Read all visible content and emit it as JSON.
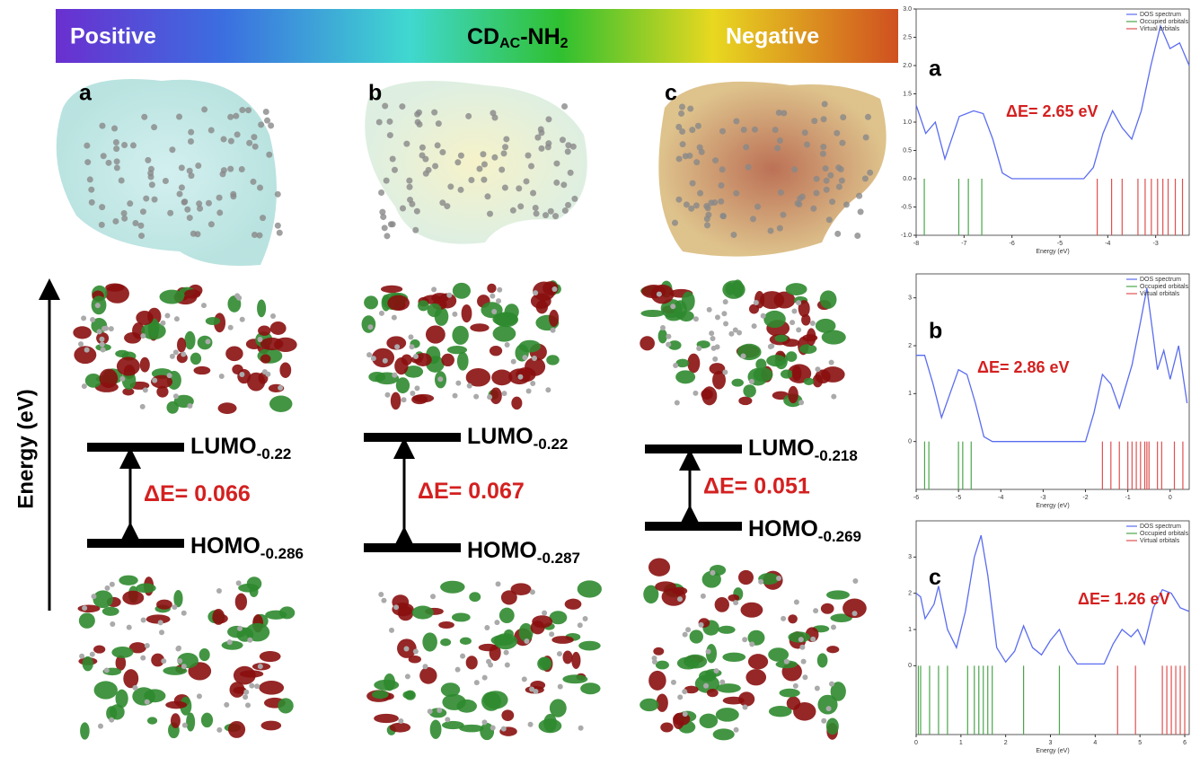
{
  "header": {
    "positive": "Positive",
    "cd": "CD",
    "cd_sub": "AC",
    "nh": "-NH",
    "nh_sub": "2",
    "negative": "Negative"
  },
  "energy_axis": "Energy (eV)",
  "panels": [
    {
      "label": "a",
      "lumo": "LUMO",
      "lumo_sub": "-0.22",
      "delta": "ΔE= 0.066",
      "homo": "HOMO",
      "homo_sub": "-0.286"
    },
    {
      "label": "b",
      "lumo": "LUMO",
      "lumo_sub": "-0.22",
      "delta": "ΔE= 0.067",
      "homo": "HOMO",
      "homo_sub": "-0.287"
    },
    {
      "label": "c",
      "lumo": "LUMO",
      "lumo_sub": "-0.218",
      "delta": "ΔE= 0.051",
      "homo": "HOMO",
      "homo_sub": "-0.269"
    }
  ],
  "chart_data": [
    {
      "type": "line",
      "panel": "a",
      "annotation": "ΔE= 2.65 eV",
      "xlabel": "Energy (eV)",
      "xlim": [
        -8,
        -2.3
      ],
      "xticks": [
        -8,
        -7,
        -6,
        -5,
        -4,
        -3
      ],
      "ylim": [
        -1,
        3
      ],
      "yticks": [
        {
          "value": -1,
          "label": "-1.0"
        },
        {
          "value": -0.5,
          "label": "-0.5"
        },
        {
          "value": 0,
          "label": "0.0"
        },
        {
          "value": 0.5,
          "label": "0.5"
        },
        {
          "value": 1,
          "label": "1.0"
        },
        {
          "value": 1.5,
          "label": "1.5"
        },
        {
          "value": 2,
          "label": "2.0"
        },
        {
          "value": 2.5,
          "label": "2.5"
        },
        {
          "value": 3,
          "label": "3.0"
        }
      ],
      "series": [
        {
          "name": "DOS spectrum",
          "color": "#5a6cf0",
          "x": [
            -8,
            -7.8,
            -7.6,
            -7.4,
            -7.1,
            -6.8,
            -6.6,
            -6.4,
            -6.2,
            -6,
            -5,
            -4.5,
            -4.3,
            -4.1,
            -3.9,
            -3.7,
            -3.5,
            -3.3,
            -3.1,
            -2.9,
            -2.7,
            -2.5,
            -2.3
          ],
          "values": [
            1.3,
            0.8,
            1,
            0.35,
            1.1,
            1.2,
            1.15,
            0.7,
            0.1,
            0,
            0,
            0,
            0.2,
            0.8,
            1.2,
            0.9,
            0.7,
            1.2,
            2,
            2.7,
            2.3,
            2.4,
            2
          ]
        }
      ],
      "orbitals": [
        {
          "name": "Occupied orbitals",
          "color": "#4aa64a",
          "x": [
            -7.83,
            -7.11,
            -6.91,
            -6.63
          ]
        },
        {
          "name": "Virtual orbitals",
          "color": "#e05050",
          "x": [
            -4.22,
            -3.92,
            -3.7,
            -3.37,
            -3.22,
            -3.09,
            -2.96,
            -2.85,
            -2.74,
            -2.59,
            -2.44
          ]
        }
      ]
    },
    {
      "type": "line",
      "panel": "b",
      "annotation": "ΔE= 2.86 eV",
      "xlabel": "Energy (eV)",
      "xlim": [
        -6,
        0.45
      ],
      "xticks": [
        -6,
        -5,
        -4,
        -3,
        -2,
        -1,
        0
      ],
      "ylim": [
        -1,
        3.5
      ],
      "yticks": [
        0,
        1,
        2,
        3
      ],
      "series": [
        {
          "name": "DOS spectrum",
          "color": "#5a6cf0",
          "x": [
            -6,
            -5.8,
            -5.6,
            -5.4,
            -5.2,
            -5,
            -4.8,
            -4.6,
            -4.4,
            -4.2,
            -2,
            -1.8,
            -1.6,
            -1.4,
            -1.2,
            -0.9,
            -0.7,
            -0.55,
            -0.4,
            -0.3,
            -0.15,
            0,
            0.2,
            0.4
          ],
          "values": [
            1.8,
            1.8,
            1.2,
            0.5,
            1,
            1.5,
            1.4,
            0.8,
            0.1,
            0,
            0,
            0.6,
            1.4,
            1.2,
            0.7,
            1.6,
            2.5,
            3.2,
            2.2,
            1.5,
            1.9,
            1.3,
            2,
            0.8
          ]
        }
      ],
      "orbitals": [
        {
          "name": "Occupied orbitals",
          "color": "#4aa64a",
          "x": [
            -5.8,
            -5.7,
            -5,
            -4.9,
            -4.7
          ]
        },
        {
          "name": "Virtual orbitals",
          "color": "#e05050",
          "x": [
            -1.6,
            -1.4,
            -1.2,
            -1,
            -0.9,
            -0.8,
            -0.7,
            -0.6,
            -0.55,
            -0.5,
            -0.3,
            -0.2,
            0.1,
            0.3
          ]
        }
      ]
    },
    {
      "type": "line",
      "panel": "c",
      "annotation": "ΔE= 1.26 eV",
      "xlabel": "Energy (eV)",
      "xlim": [
        0,
        6.1
      ],
      "xticks": [
        0,
        1,
        2,
        3,
        4,
        5,
        6
      ],
      "ylim": [
        -1.9,
        4
      ],
      "yticks": [
        0,
        1,
        2,
        3
      ],
      "series": [
        {
          "name": "DOS spectrum",
          "color": "#5a6cf0",
          "x": [
            0,
            0.1,
            0.2,
            0.4,
            0.5,
            0.7,
            0.9,
            1.1,
            1.3,
            1.45,
            1.6,
            1.8,
            2,
            2.2,
            2.4,
            2.6,
            2.8,
            3,
            3.2,
            3.4,
            3.6,
            4.2,
            4.4,
            4.6,
            4.8,
            4.95,
            5.1,
            5.3,
            5.5,
            5.7,
            5.9,
            6.1
          ],
          "values": [
            2,
            1.9,
            1.3,
            1.7,
            2.2,
            1,
            0.5,
            1.5,
            3,
            3.6,
            2.5,
            0.5,
            0.1,
            0.4,
            1.1,
            0.5,
            0.3,
            0.7,
            1,
            0.4,
            0.05,
            0.05,
            0.6,
            1,
            0.8,
            1,
            0.6,
            1.6,
            2.1,
            2,
            1.6,
            1.5
          ]
        }
      ],
      "orbitals": [
        {
          "name": "Occupied orbitals",
          "color": "#4aa64a",
          "x": [
            0.05,
            0.1,
            0.3,
            0.5,
            0.7,
            1.15,
            1.3,
            1.4,
            1.5,
            1.6,
            1.7,
            2.4,
            3.2
          ]
        },
        {
          "name": "Virtual orbitals",
          "color": "#e05050",
          "x": [
            4.5,
            4.9,
            5.5,
            5.6,
            5.7,
            5.8,
            5.9,
            6
          ]
        }
      ]
    }
  ]
}
